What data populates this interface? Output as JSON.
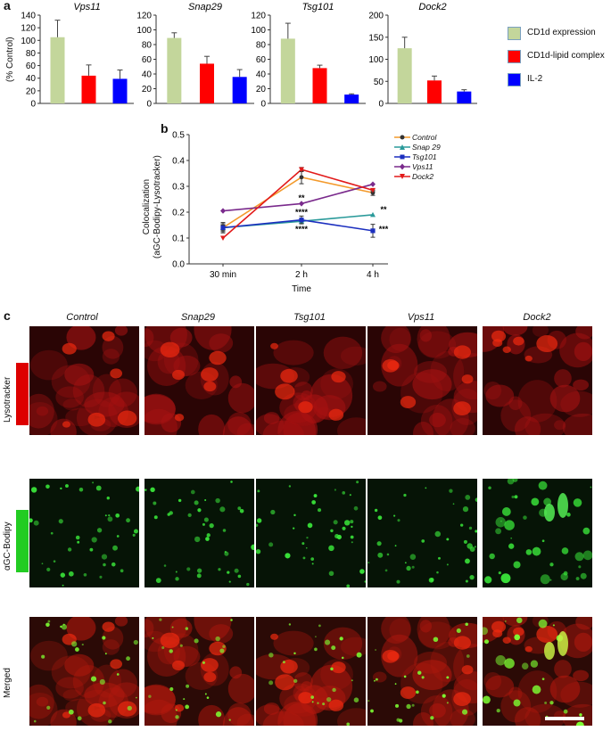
{
  "panel_letters": {
    "a": "a",
    "b": "b",
    "c": "c"
  },
  "panel_a": {
    "ylabel": "(% Control)",
    "legend": [
      {
        "label": "CD1d expression",
        "color": "#c3d69b"
      },
      {
        "label": "CD1d-lipid complex",
        "color": "#ff0000"
      },
      {
        "label": "IL-2",
        "color": "#0000ff"
      }
    ]
  },
  "panel_b": {
    "ylabel_line1": "Colocalization",
    "ylabel_line2": "(aGC-Bodipy-Lysotracker)",
    "xlabel": "Time",
    "annotations": [
      {
        "text": "**",
        "x": "2 h",
        "y": 0.255
      },
      {
        "text": "****",
        "x": "2 h",
        "y": 0.2
      },
      {
        "text": "****",
        "x": "2 h",
        "y": 0.135
      },
      {
        "text": "**",
        "x": "4 h",
        "y": 0.21
      },
      {
        "text": "***",
        "x": "4 h",
        "y": 0.135
      }
    ]
  },
  "panel_c": {
    "columns": [
      "Control",
      "Snap29",
      "Tsg101",
      "Vps11",
      "Dock2"
    ],
    "rows": [
      {
        "label": "Lysotracker",
        "bar_color": "#dd0000"
      },
      {
        "label": "αGC-Bodipy",
        "bar_color": "#22cc22"
      },
      {
        "label": "Merged",
        "bar_color": ""
      }
    ]
  },
  "chart_data": [
    {
      "type": "bar",
      "title": "Vps11",
      "categories": [
        "CD1d expression",
        "CD1d-lipid complex",
        "IL-2"
      ],
      "values": [
        105,
        44,
        39
      ],
      "errors": [
        27,
        17,
        14
      ],
      "ylim": [
        0,
        140
      ],
      "yticks": [
        0,
        20,
        40,
        60,
        80,
        100,
        120,
        140
      ],
      "colors": [
        "#c3d69b",
        "#ff0000",
        "#0000ff"
      ]
    },
    {
      "type": "bar",
      "title": "Snap29",
      "categories": [
        "CD1d expression",
        "CD1d-lipid complex",
        "IL-2"
      ],
      "values": [
        89,
        54,
        36
      ],
      "errors": [
        7,
        10,
        10
      ],
      "ylim": [
        0,
        120
      ],
      "yticks": [
        0,
        20,
        40,
        60,
        80,
        100,
        120
      ],
      "colors": [
        "#c3d69b",
        "#ff0000",
        "#0000ff"
      ]
    },
    {
      "type": "bar",
      "title": "Tsg101",
      "categories": [
        "CD1d expression",
        "CD1d-lipid complex",
        "IL-2"
      ],
      "values": [
        88,
        48,
        12
      ],
      "errors": [
        21,
        4,
        1
      ],
      "ylim": [
        0,
        120
      ],
      "yticks": [
        0,
        20,
        40,
        60,
        80,
        100,
        120
      ],
      "colors": [
        "#c3d69b",
        "#ff0000",
        "#0000ff"
      ]
    },
    {
      "type": "bar",
      "title": "Dock2",
      "categories": [
        "CD1d expression",
        "CD1d-lipid complex",
        "IL-2"
      ],
      "values": [
        125,
        52,
        27
      ],
      "errors": [
        25,
        10,
        4
      ],
      "ylim": [
        0,
        200
      ],
      "yticks": [
        0,
        50,
        100,
        150,
        200
      ],
      "colors": [
        "#c3d69b",
        "#ff0000",
        "#0000ff"
      ]
    },
    {
      "type": "line",
      "x": [
        "30 min",
        "2 h",
        "4 h"
      ],
      "xlabel": "Time",
      "ylabel": "Colocalization (aGC-Bodipy-Lysotracker)",
      "ylim": [
        0.0,
        0.5
      ],
      "yticks": [
        "0.0",
        "0.1",
        "0.2",
        "0.3",
        "0.4",
        "0.5"
      ],
      "series": [
        {
          "name": "Control",
          "color": "#f39a2c",
          "marker": "circle",
          "values": [
            0.14,
            0.335,
            0.275
          ],
          "errors": [
            0.02,
            0.025,
            0.01
          ]
        },
        {
          "name": "Snap 29",
          "color": "#2a9a9a",
          "marker": "triangle",
          "values": [
            0.14,
            0.165,
            0.19
          ],
          "errors": [
            0.01,
            0.01,
            0.0
          ]
        },
        {
          "name": "Tsg101",
          "color": "#1c2fbf",
          "marker": "square",
          "values": [
            0.14,
            0.17,
            0.128
          ],
          "errors": [
            0.015,
            0.015,
            0.025
          ]
        },
        {
          "name": "Vps11",
          "color": "#7a2a8c",
          "marker": "diamond",
          "values": [
            0.205,
            0.233,
            0.308
          ],
          "errors": [
            0.0,
            0.0,
            0.0
          ]
        },
        {
          "name": "Dock2",
          "color": "#e21a1a",
          "marker": "triangle-down",
          "values": [
            0.1,
            0.365,
            0.285
          ],
          "errors": [
            0.0,
            0.008,
            0.005
          ]
        }
      ]
    }
  ]
}
